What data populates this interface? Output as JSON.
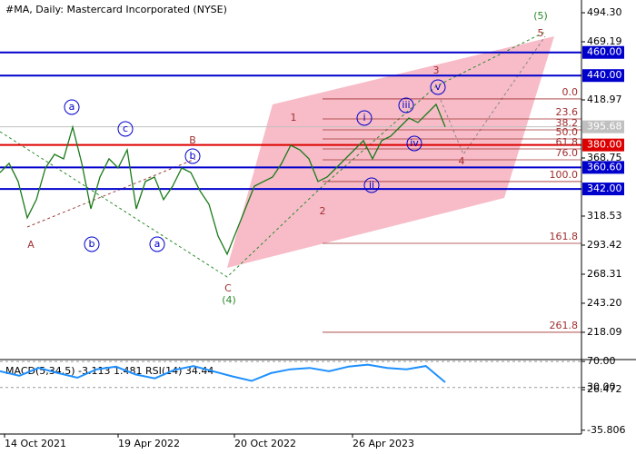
{
  "chart_data": {
    "type": "line",
    "title": "#MA, Daily:  Mastercard Incorporated (NYSE)",
    "ylim": [
      195.3,
      505.3
    ],
    "yticks": [
      {
        "value": 494.3,
        "label": "494.30"
      },
      469.19,
      418.97,
      368.75,
      318.53,
      293.42,
      268.31,
      {
        "value": 243.2,
        "label": "243.20"
      },
      218.09
    ],
    "series": [
      {
        "name": "MA",
        "color": "#000000",
        "values": [
          356.2,
          364.1,
          348.4,
          317.0,
          332.7,
          360.1,
          371.9,
          368.0,
          395.4,
          364.1,
          324.8,
          352.3,
          368.0,
          360.1,
          375.8,
          324.8,
          348.4,
          352.3,
          332.7,
          344.4,
          360.1,
          356.2,
          340.5,
          328.7,
          301.3,
          285.6,
          305.2,
          324.8,
          344.4,
          348.4,
          352.3,
          364.1,
          379.7,
          375.8,
          368.0,
          348.4,
          352.3,
          360.1,
          368.0,
          375.8,
          383.7,
          368.0,
          383.7,
          387.6,
          395.4,
          403.3,
          399.4,
          407.2,
          415.1,
          395.68
        ]
      }
    ],
    "levels": [
      {
        "value": 460,
        "label": "460.00",
        "color": "#0000cc"
      },
      {
        "value": 440,
        "label": "440.00",
        "color": "#0000cc"
      },
      {
        "value": 395.68,
        "label": "395.68",
        "color": "#c0c0c0"
      },
      {
        "value": 380,
        "label": "380.00",
        "color": "#dd0000"
      },
      {
        "value": 360.6,
        "label": "360.60",
        "color": "#0000cc"
      },
      {
        "value": 342,
        "label": "342.00",
        "color": "#0000cc"
      }
    ],
    "fib_levels": [
      {
        "ratio": "0.0",
        "price": 419.8
      },
      {
        "ratio": "23.6",
        "price": 402.5
      },
      {
        "ratio": "38.2",
        "price": 393.1
      },
      {
        "ratio": "50.0",
        "price": 385.2
      },
      {
        "ratio": "61.8",
        "price": 376.6
      },
      {
        "ratio": "76.0",
        "price": 367.2
      },
      {
        "ratio": "100.0",
        "price": 348.4
      },
      {
        "ratio": "161.8",
        "price": 295.0
      },
      {
        "ratio": "261.8",
        "price": 218.1
      }
    ],
    "wave_labels": [
      "A",
      "B",
      "C",
      "(4)",
      "(5)",
      "1",
      "2",
      "3",
      "4",
      "5",
      "a",
      "b",
      "c",
      "a",
      "b",
      "i",
      "ii",
      "iii",
      "iv",
      "v"
    ],
    "x_labels": [
      "14 Oct 2021",
      "19 Apr 2022",
      "20 Oct 2022",
      "26 Apr 2023"
    ],
    "indicator": {
      "title": "MACD(5,34,5) -3.113 1.481 RSI(14) 34.44",
      "ylim": [
        -40.3,
        67.3
      ],
      "yticks": [
        {
          "value": 26.472,
          "label": "26.472"
        },
        {
          "value": 70,
          "label": "70.00"
        },
        {
          "value": 30,
          "label": "30.00"
        },
        -35.806
      ],
      "rsi_color": "#1e90ff",
      "rsi": [
        55,
        48,
        60,
        52,
        45,
        58,
        62,
        50,
        44,
        57,
        63,
        55,
        47,
        40,
        52,
        58,
        60,
        55,
        62,
        65,
        60,
        58,
        63,
        38
      ]
    }
  }
}
